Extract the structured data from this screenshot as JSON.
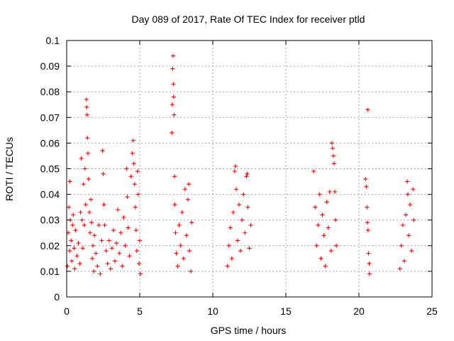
{
  "chart_data": {
    "type": "scatter",
    "title": "Day 089 of 2017, Rate Of TEC Index for receiver ptld",
    "xlabel": "GPS time / hours",
    "ylabel": "ROTI / TECUs",
    "xlim": [
      0,
      25
    ],
    "ylim": [
      0,
      0.1
    ],
    "grid": true,
    "marker": "+",
    "color": "#ff0000",
    "xticks": [
      0,
      5,
      10,
      15,
      20,
      25
    ],
    "xtick_labels": [
      "0",
      "5",
      "10",
      "15",
      "20",
      "25"
    ],
    "yticks": [
      0,
      0.01,
      0.02,
      0.03,
      0.04,
      0.05,
      0.06,
      0.07,
      0.08,
      0.09,
      0.1
    ],
    "ytick_labels": [
      "0",
      "0.01",
      "0.02",
      "0.03",
      "0.04",
      "0.05",
      "0.06",
      "0.07",
      "0.08",
      "0.09",
      "0.1"
    ],
    "series": [
      {
        "name": "ROTI",
        "points": [
          [
            0.05,
            0.012
          ],
          [
            0.1,
            0.025
          ],
          [
            0.15,
            0.035
          ],
          [
            0.2,
            0.018
          ],
          [
            0.22,
            0.045
          ],
          [
            0.25,
            0.03
          ],
          [
            0.3,
            0.022
          ],
          [
            0.35,
            0.014
          ],
          [
            0.4,
            0.028
          ],
          [
            0.45,
            0.032
          ],
          [
            0.5,
            0.019
          ],
          [
            0.55,
            0.011
          ],
          [
            0.6,
            0.026
          ],
          [
            0.7,
            0.016
          ],
          [
            0.8,
            0.021
          ],
          [
            0.9,
            0.013
          ],
          [
            0.95,
            0.033
          ],
          [
            1.0,
            0.054
          ],
          [
            1.05,
            0.03
          ],
          [
            1.1,
            0.019
          ],
          [
            1.15,
            0.044
          ],
          [
            1.2,
            0.028
          ],
          [
            1.25,
            0.05
          ],
          [
            1.3,
            0.036
          ],
          [
            1.35,
            0.077
          ],
          [
            1.37,
            0.074
          ],
          [
            1.4,
            0.071
          ],
          [
            1.42,
            0.062
          ],
          [
            1.45,
            0.056
          ],
          [
            1.5,
            0.046
          ],
          [
            1.55,
            0.033
          ],
          [
            1.6,
            0.025
          ],
          [
            1.65,
            0.038
          ],
          [
            1.7,
            0.029
          ],
          [
            1.75,
            0.015
          ],
          [
            1.8,
            0.02
          ],
          [
            1.85,
            0.01
          ],
          [
            1.9,
            0.024
          ],
          [
            2.0,
            0.017
          ],
          [
            2.1,
            0.012
          ],
          [
            2.2,
            0.028
          ],
          [
            2.3,
            0.009
          ],
          [
            2.4,
            0.022
          ],
          [
            2.45,
            0.057
          ],
          [
            2.5,
            0.048
          ],
          [
            2.55,
            0.036
          ],
          [
            2.6,
            0.028
          ],
          [
            2.7,
            0.018
          ],
          [
            2.8,
            0.013
          ],
          [
            2.9,
            0.022
          ],
          [
            3.0,
            0.011
          ],
          [
            3.1,
            0.019
          ],
          [
            3.2,
            0.026
          ],
          [
            3.3,
            0.014
          ],
          [
            3.4,
            0.021
          ],
          [
            3.5,
            0.034
          ],
          [
            3.6,
            0.017
          ],
          [
            3.7,
            0.025
          ],
          [
            3.8,
            0.012
          ],
          [
            3.9,
            0.031
          ],
          [
            4.0,
            0.02
          ],
          [
            4.1,
            0.05
          ],
          [
            4.15,
            0.039
          ],
          [
            4.2,
            0.027
          ],
          [
            4.3,
            0.016
          ],
          [
            4.4,
            0.047
          ],
          [
            4.5,
            0.056
          ],
          [
            4.55,
            0.061
          ],
          [
            4.6,
            0.052
          ],
          [
            4.65,
            0.044
          ],
          [
            4.7,
            0.035
          ],
          [
            4.75,
            0.026
          ],
          [
            4.8,
            0.018
          ],
          [
            4.85,
            0.049
          ],
          [
            4.9,
            0.04
          ],
          [
            4.95,
            0.013
          ],
          [
            5.0,
            0.022
          ],
          [
            5.05,
            0.009
          ],
          [
            7.2,
            0.064
          ],
          [
            7.22,
            0.075
          ],
          [
            7.25,
            0.089
          ],
          [
            7.28,
            0.094
          ],
          [
            7.3,
            0.083
          ],
          [
            7.32,
            0.078
          ],
          [
            7.35,
            0.071
          ],
          [
            7.38,
            0.047
          ],
          [
            7.4,
            0.036
          ],
          [
            7.45,
            0.025
          ],
          [
            7.5,
            0.017
          ],
          [
            7.6,
            0.012
          ],
          [
            7.7,
            0.028
          ],
          [
            7.8,
            0.02
          ],
          [
            7.9,
            0.033
          ],
          [
            8.0,
            0.015
          ],
          [
            8.1,
            0.042
          ],
          [
            8.2,
            0.024
          ],
          [
            8.3,
            0.038
          ],
          [
            8.35,
            0.044
          ],
          [
            8.4,
            0.018
          ],
          [
            8.5,
            0.01
          ],
          [
            8.55,
            0.029
          ],
          [
            11.0,
            0.012
          ],
          [
            11.1,
            0.02
          ],
          [
            11.2,
            0.027
          ],
          [
            11.3,
            0.015
          ],
          [
            11.4,
            0.033
          ],
          [
            11.5,
            0.049
          ],
          [
            11.55,
            0.051
          ],
          [
            11.6,
            0.042
          ],
          [
            11.7,
            0.022
          ],
          [
            11.8,
            0.036
          ],
          [
            11.9,
            0.018
          ],
          [
            12.0,
            0.03
          ],
          [
            12.1,
            0.04
          ],
          [
            12.2,
            0.025
          ],
          [
            12.3,
            0.047
          ],
          [
            12.35,
            0.048
          ],
          [
            12.4,
            0.035
          ],
          [
            12.5,
            0.019
          ],
          [
            12.6,
            0.028
          ],
          [
            16.9,
            0.049
          ],
          [
            17.0,
            0.035
          ],
          [
            17.1,
            0.02
          ],
          [
            17.2,
            0.028
          ],
          [
            17.3,
            0.04
          ],
          [
            17.4,
            0.015
          ],
          [
            17.5,
            0.032
          ],
          [
            17.6,
            0.024
          ],
          [
            17.7,
            0.012
          ],
          [
            17.8,
            0.037
          ],
          [
            17.9,
            0.027
          ],
          [
            18.0,
            0.041
          ],
          [
            18.1,
            0.018
          ],
          [
            18.15,
            0.06
          ],
          [
            18.2,
            0.058
          ],
          [
            18.25,
            0.055
          ],
          [
            18.3,
            0.052
          ],
          [
            18.35,
            0.041
          ],
          [
            18.4,
            0.03
          ],
          [
            18.45,
            0.02
          ],
          [
            20.45,
            0.046
          ],
          [
            20.5,
            0.043
          ],
          [
            20.55,
            0.035
          ],
          [
            20.58,
            0.029
          ],
          [
            20.6,
            0.073
          ],
          [
            20.62,
            0.026
          ],
          [
            20.65,
            0.017
          ],
          [
            20.7,
            0.013
          ],
          [
            20.72,
            0.009
          ],
          [
            22.8,
            0.011
          ],
          [
            22.9,
            0.02
          ],
          [
            23.0,
            0.028
          ],
          [
            23.1,
            0.014
          ],
          [
            23.2,
            0.032
          ],
          [
            23.3,
            0.045
          ],
          [
            23.35,
            0.04
          ],
          [
            23.4,
            0.024
          ],
          [
            23.5,
            0.036
          ],
          [
            23.6,
            0.018
          ],
          [
            23.7,
            0.042
          ],
          [
            23.75,
            0.03
          ]
        ]
      }
    ]
  }
}
